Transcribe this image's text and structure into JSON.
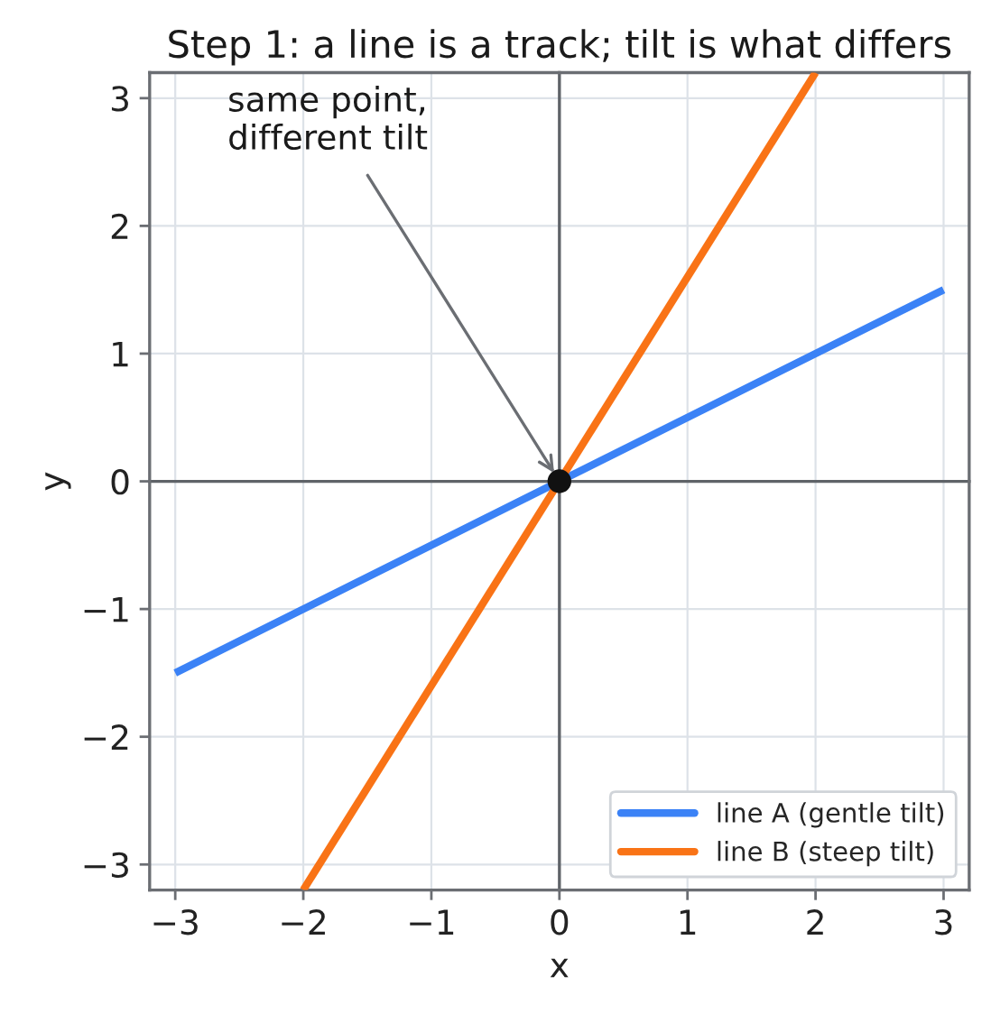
{
  "chart_data": {
    "type": "line",
    "title": "Step 1: a line is a track; tilt is what differs",
    "xlabel": "x",
    "ylabel": "y",
    "series": [
      {
        "name": "line A (gentle tilt)",
        "color": "#3b82f6",
        "x": [
          -3,
          3
        ],
        "values": [
          -1.5,
          1.5
        ]
      },
      {
        "name": "line B (steep tilt)",
        "color": "#f97316",
        "x": [
          -2,
          2
        ],
        "values": [
          -3.2,
          3.2
        ]
      },
      {
        "type": "scatter",
        "color": "#111111",
        "x": [
          0
        ],
        "values": [
          0
        ],
        "marker": "circle"
      }
    ],
    "xlim": [
      -3.2,
      3.2
    ],
    "ylim": [
      -3.2,
      3.2
    ],
    "xticks": [
      -3,
      -2,
      -1,
      0,
      1,
      2,
      3
    ],
    "yticks": [
      -3,
      -2,
      -1,
      0,
      1,
      2,
      3
    ],
    "grid": true,
    "legend": "bottom right",
    "line_style": "solid",
    "annotations": [
      {
        "text": "same point,\ndifferent tilt",
        "x": 0,
        "y": 0
      }
    ]
  }
}
